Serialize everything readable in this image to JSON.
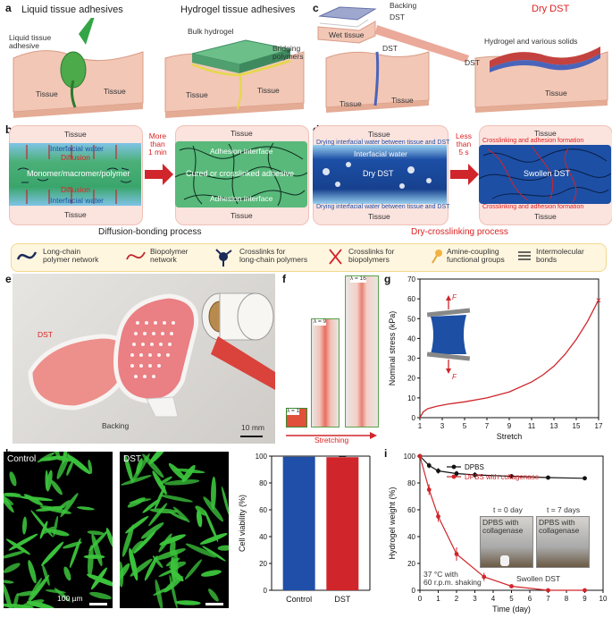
{
  "panels": {
    "a": "a",
    "b": "b",
    "c": "c",
    "d": "d",
    "e": "e",
    "f": "f",
    "g": "g",
    "h": "h",
    "i": "i"
  },
  "a": {
    "title_left": "Liquid tissue adhesives",
    "title_right": "Hydrogel tissue adhesives",
    "liquid_label": "Liquid tissue\nadhesive",
    "tissue": "Tissue",
    "bulk_hydrogel": "Bulk hydrogel",
    "bridging": "Bridging\npolymers"
  },
  "c": {
    "backing": "Backing",
    "dst": "DST",
    "wet_tissue": "Wet tissue",
    "dry_dst": "Dry DST",
    "hydrogel_solids": "Hydrogel and various solids",
    "tissue": "Tissue"
  },
  "b": {
    "tissue": "Tissue",
    "interfacial_water": "Interfacial water",
    "diffusion": "Diffusion",
    "monomer": "Monomer/macromer/polymer",
    "more_than": "More\nthan\n1 min",
    "adhesion_interface": "Adhesion interface",
    "cured": "Cured or crosslinked adhesive",
    "process": "Diffusion-bonding process"
  },
  "d": {
    "tissue": "Tissue",
    "drying": "Drying interfacial water between tissue and DST",
    "interfacial_water": "Interfacial water",
    "dry_dst": "Dry DST",
    "less_than": "Less\nthan\n5 s",
    "crosslinking": "Crosslinking and adhesion formation",
    "swollen": "Swollen DST",
    "process": "Dry-crosslinking process"
  },
  "legend": {
    "items": [
      "Long-chain\npolymer network",
      "Biopolymer\nnetwork",
      "Crosslinks for\nlong-chain polymers",
      "Crosslinks for\nbiopolymers",
      "Amine-coupling\nfunctional groups",
      "Intermolecular\nbonds"
    ]
  },
  "e": {
    "dst": "DST",
    "backing": "Backing",
    "scale": "10 mm"
  },
  "f": {
    "lambda1": "λ = 1",
    "lambda9": "λ = 9",
    "lambda16": "λ = 16",
    "stretching": "Stretching"
  },
  "g": {
    "force": "F",
    "cross": "×"
  },
  "h": {
    "control": "Control",
    "dst": "DST",
    "scale": "100 µm"
  },
  "i": {
    "t0": "t = 0 day",
    "t7": "t = 7 days",
    "dpbs_coll": "DPBS with\ncollagenase",
    "swollen": "Swollen DST",
    "cond": "37 °C with\n60 r.p.m. shaking"
  },
  "chart_data": [
    {
      "type": "line",
      "panel": "g",
      "xlabel": "Stretch",
      "ylabel": "Nominal stress (kPa)",
      "xlim": [
        1,
        17
      ],
      "ylim": [
        0,
        70
      ],
      "xticks": [
        1,
        3,
        5,
        7,
        9,
        11,
        13,
        15,
        17
      ],
      "yticks": [
        0,
        10,
        20,
        30,
        40,
        50,
        60,
        70
      ],
      "x": [
        1,
        1.3,
        1.7,
        2.5,
        3.5,
        5,
        7,
        9,
        11,
        12,
        13,
        14,
        15,
        16,
        17
      ],
      "y": [
        0,
        3,
        4.5,
        5.8,
        6.8,
        8,
        10,
        13,
        18,
        21.5,
        26,
        32,
        39.5,
        48.5,
        59.5
      ],
      "color": "#d0262b"
    },
    {
      "type": "bar",
      "panel": "h",
      "ylabel": "Cell viability (%)",
      "categories": [
        "Control",
        "DST"
      ],
      "values": [
        99.5,
        99.2
      ],
      "errors": [
        0.5,
        0.5
      ],
      "colors": [
        "#1f4fa8",
        "#d0262b"
      ],
      "ylim": [
        0,
        100
      ],
      "yticks": [
        0,
        20,
        40,
        60,
        80,
        100
      ]
    },
    {
      "type": "line",
      "panel": "i",
      "xlabel": "Time (day)",
      "ylabel": "Hydrogel weight (%)",
      "xlim": [
        0,
        10
      ],
      "ylim": [
        0,
        100
      ],
      "xticks": [
        0,
        1,
        2,
        3,
        4,
        5,
        6,
        7,
        8,
        9,
        10
      ],
      "yticks": [
        0,
        20,
        40,
        60,
        80,
        100
      ],
      "legend_position": "top-right",
      "series": [
        {
          "name": "DPBS",
          "color": "#111111",
          "x": [
            0,
            0.5,
            1,
            2,
            3,
            5,
            7,
            9
          ],
          "y": [
            100,
            93,
            89,
            87,
            86,
            85,
            84,
            83.5
          ],
          "err": [
            1,
            2,
            2,
            2,
            2,
            1.5,
            1.5,
            1.5
          ]
        },
        {
          "name": "DPBS with collagenase",
          "color": "#d0262b",
          "x": [
            0,
            0.5,
            1,
            2,
            3.5,
            5,
            7,
            9
          ],
          "y": [
            100,
            75,
            55,
            27,
            10,
            3,
            0,
            0
          ],
          "err": [
            1,
            4,
            4,
            5,
            3,
            1,
            0.5,
            0.5
          ]
        }
      ]
    }
  ]
}
